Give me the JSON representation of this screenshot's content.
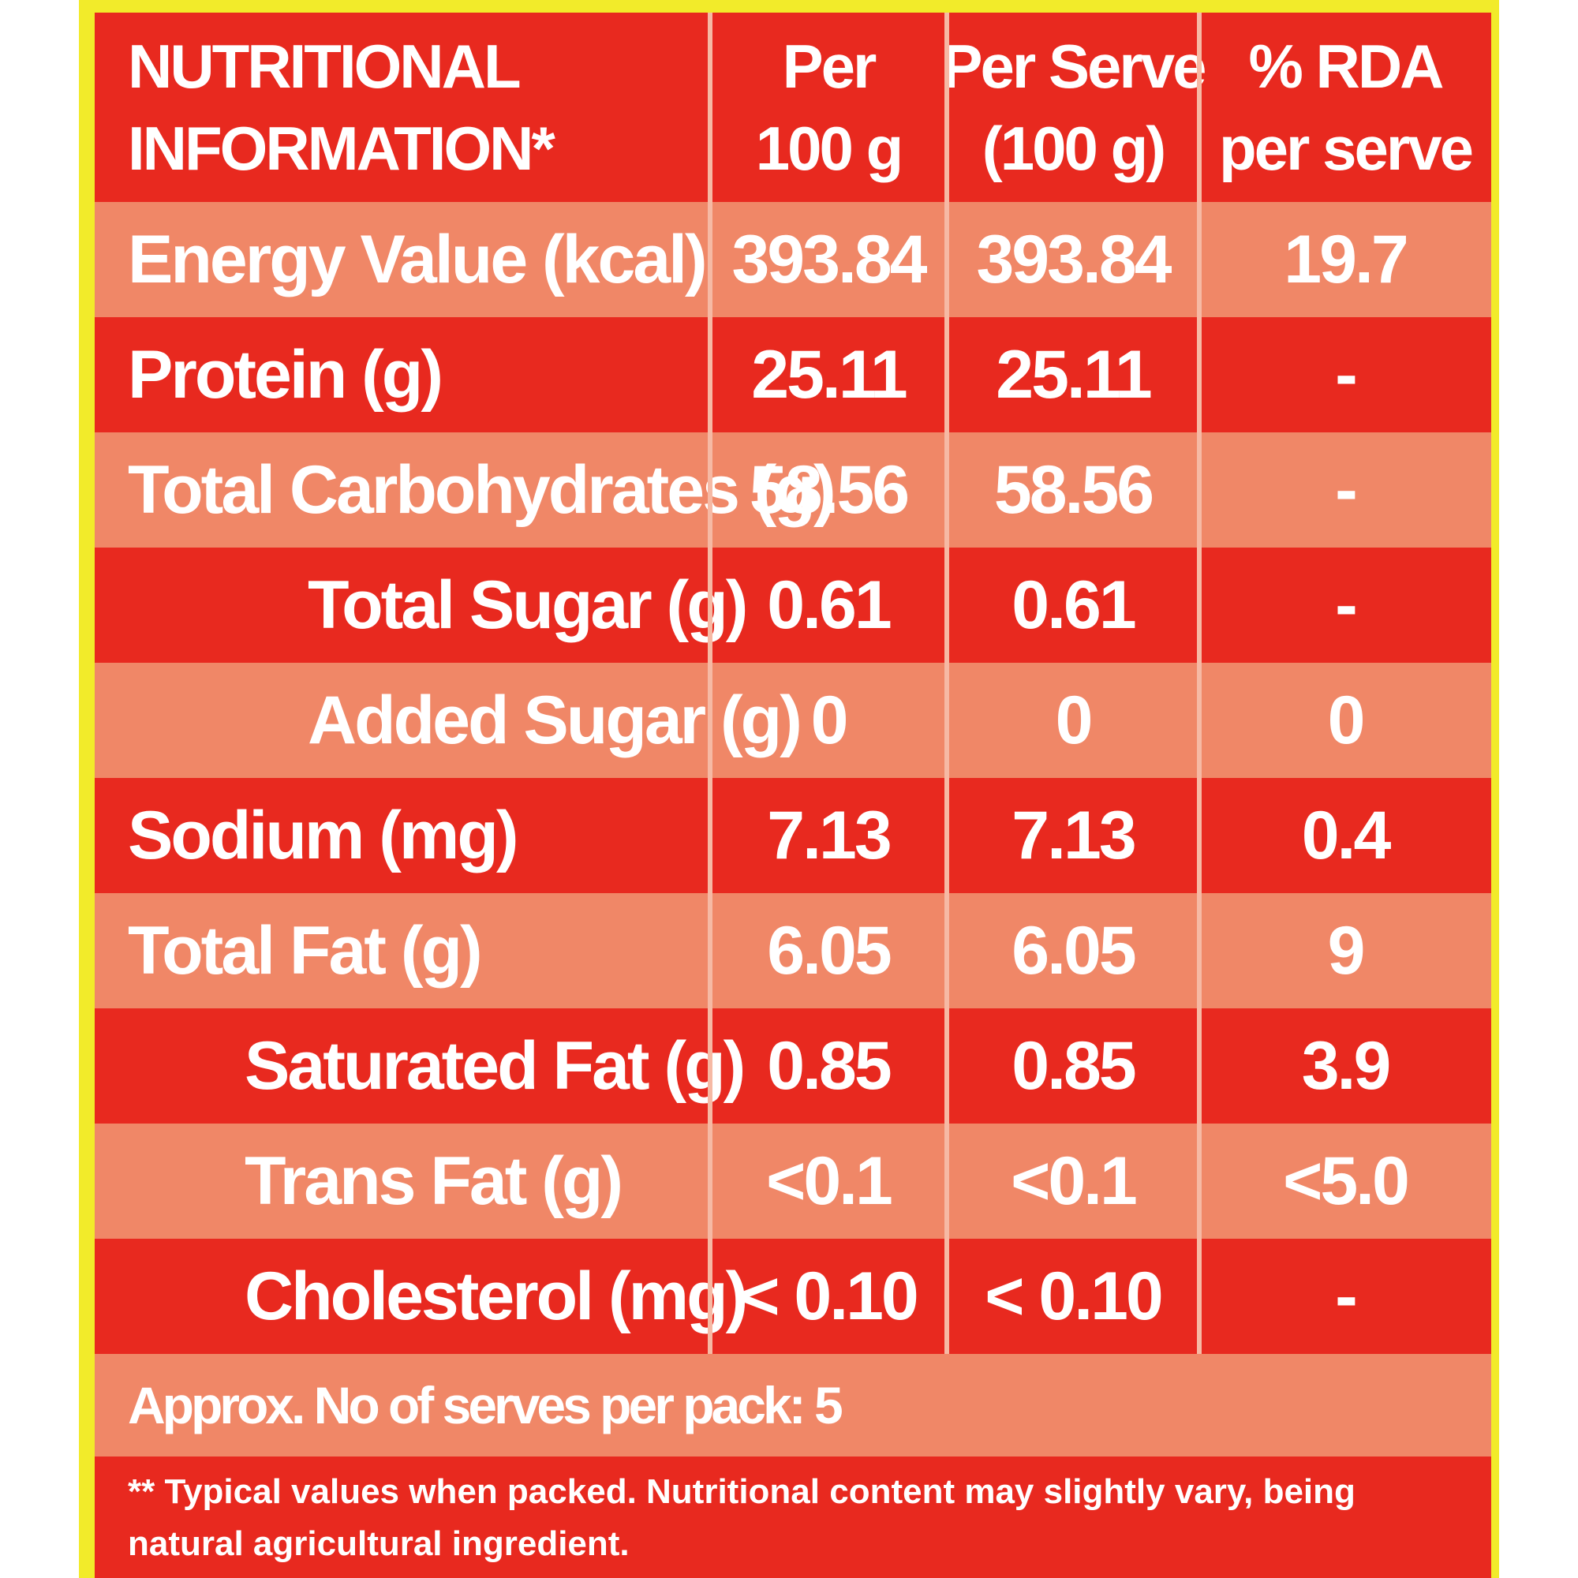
{
  "header": {
    "title_line1": "NUTRITIONAL",
    "title_line2": "INFORMATION*",
    "col1_line1": "Per",
    "col1_line2": "100 g",
    "col2_line1": "Per Serve",
    "col2_line2": "(100 g)",
    "col3_line1": "% RDA",
    "col3_line2": "per serve"
  },
  "rows": [
    {
      "name": "Energy Value  (kcal)",
      "per100": "393.84",
      "perServe": "393.84",
      "rda": "19.7"
    },
    {
      "name": "Protein  (g)",
      "per100": "25.11",
      "perServe": "25.11",
      "rda": "-"
    },
    {
      "name": "Total Carbohydrates  (g)",
      "per100": "58.56",
      "perServe": "58.56",
      "rda": "-"
    },
    {
      "name": "Total Sugar (g)",
      "per100": "0.61",
      "perServe": "0.61",
      "rda": "-"
    },
    {
      "name": "Added Sugar (g)",
      "per100": "0",
      "perServe": "0",
      "rda": "0"
    },
    {
      "name": "Sodium (mg)",
      "per100": "7.13",
      "perServe": "7.13",
      "rda": "0.4"
    },
    {
      "name": "Total Fat (g)",
      "per100": "6.05",
      "perServe": "6.05",
      "rda": "9"
    },
    {
      "name": "Saturated Fat (g)",
      "per100": "0.85",
      "perServe": "0.85",
      "rda": "3.9"
    },
    {
      "name": "Trans Fat (g)",
      "per100": "<0.1",
      "perServe": "<0.1",
      "rda": "<5.0"
    },
    {
      "name": "Cholesterol  (mg)",
      "per100": "< 0.10",
      "perServe": "< 0.10",
      "rda": "-"
    }
  ],
  "footer": {
    "serves": "Approx. No of serves per pack: 5",
    "note": "** Typical values when packed. Nutritional content may slightly vary, being natural agricultural ingredient."
  },
  "colors": {
    "border": "#f2eb2a",
    "dark_row": "#e8291f",
    "light_row": "#f08767",
    "text": "#ffffff"
  }
}
